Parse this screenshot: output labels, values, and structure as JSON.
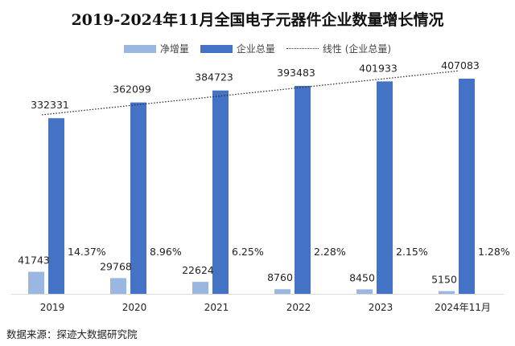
{
  "title": "2019-2024年11月全国电子元器件企业数量增长情况",
  "source": "数据来源：探迹大数据研究院",
  "colors": {
    "net_increase": "#9ab7e2",
    "total": "#4472c4",
    "trendline": "#333333"
  },
  "chart_data": {
    "type": "bar",
    "title": "2019-2024年11月全国电子元器件企业数量增长情况",
    "categories": [
      "2019",
      "2020",
      "2021",
      "2022",
      "2023",
      "2024年11月"
    ],
    "series": [
      {
        "name": "净增量",
        "values": [
          41743,
          29768,
          22624,
          8760,
          8450,
          5150
        ]
      },
      {
        "name": "企业总量",
        "values": [
          332331,
          362099,
          384723,
          393483,
          401933,
          407083
        ]
      }
    ],
    "growth_rate_labels": [
      "14.37%",
      "8.96%",
      "6.25%",
      "2.28%",
      "2.15%",
      "1.28%"
    ],
    "trendline": {
      "name": "线性 (企业总量)",
      "series": "企业总量",
      "type": "linear"
    },
    "legend_position": "top",
    "ylim": [
      0,
      450000
    ],
    "grid": false
  }
}
